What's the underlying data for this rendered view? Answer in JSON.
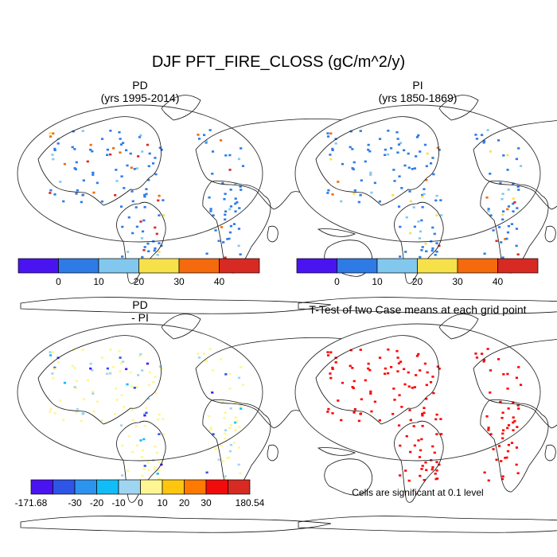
{
  "figure": {
    "main_title": "DJF PFT_FIRE_CLOSS (gC/m^2/y)",
    "panels": [
      {
        "id": "pd",
        "title_line1": "PD",
        "title_line2": "(yrs 1995-2014)",
        "field": "absolute"
      },
      {
        "id": "pi",
        "title_line1": "PI",
        "title_line2": "(yrs 1850-1869)",
        "field": "absolute"
      },
      {
        "id": "diff",
        "title_line1": "PD",
        "title_line2": "- PI",
        "field": "difference"
      },
      {
        "id": "ttest",
        "title_line1": "T-Test of two Case means at each grid point",
        "title_line2": "",
        "field": "significance"
      }
    ],
    "colorbars": {
      "absolute": {
        "colors": [
          "#4a14f0",
          "#2e7be6",
          "#82c8ee",
          "#f7e14a",
          "#f46a0c",
          "#d62a23"
        ],
        "tick_labels": [
          "0",
          "10",
          "20",
          "30",
          "40"
        ]
      },
      "difference": {
        "colors": [
          "#4a14f0",
          "#2f55e6",
          "#2c93ef",
          "#12bdf7",
          "#9fd5f1",
          "#fff693",
          "#ffc60f",
          "#ff7a00",
          "#f10c0b",
          "#d62a23"
        ],
        "tick_labels": [
          "-171.68",
          "-30",
          "-20",
          "-10",
          "0",
          "10",
          "20",
          "30",
          "180.54"
        ]
      }
    },
    "significance_note": "Cells are significant at 0.1 level",
    "significance_color": "#ff0000"
  }
}
